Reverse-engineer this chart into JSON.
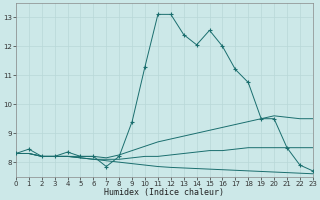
{
  "xlabel": "Humidex (Indice chaleur)",
  "background_color": "#cce8e8",
  "grid_color": "#b8d8d8",
  "line_color": "#1a6e6e",
  "xlim": [
    0,
    23
  ],
  "ylim": [
    7.5,
    13.5
  ],
  "yticks": [
    8,
    9,
    10,
    11,
    12,
    13
  ],
  "xticks": [
    0,
    1,
    2,
    3,
    4,
    5,
    6,
    7,
    8,
    9,
    10,
    11,
    12,
    13,
    14,
    15,
    16,
    17,
    18,
    19,
    20,
    21,
    22,
    23
  ],
  "series": [
    {
      "x": [
        0,
        1,
        2,
        3,
        4,
        5,
        6,
        7,
        8,
        9,
        10,
        11,
        12,
        13,
        14,
        15,
        16,
        17,
        18,
        19,
        20,
        21,
        22,
        23
      ],
      "y": [
        8.3,
        8.45,
        8.2,
        8.2,
        8.35,
        8.2,
        8.2,
        7.85,
        8.2,
        9.4,
        11.3,
        13.1,
        13.1,
        12.4,
        12.05,
        12.55,
        12.0,
        11.2,
        10.75,
        9.5,
        9.5,
        8.5,
        7.9,
        7.7
      ],
      "marker": true
    },
    {
      "x": [
        0,
        1,
        2,
        3,
        4,
        5,
        6,
        7,
        8,
        9,
        10,
        11,
        12,
        13,
        14,
        15,
        16,
        17,
        18,
        19,
        20,
        21,
        22,
        23
      ],
      "y": [
        8.3,
        8.3,
        8.2,
        8.2,
        8.2,
        8.2,
        8.2,
        8.15,
        8.25,
        8.4,
        8.55,
        8.7,
        8.8,
        8.9,
        9.0,
        9.1,
        9.2,
        9.3,
        9.4,
        9.5,
        9.6,
        9.55,
        9.5,
        9.5
      ],
      "marker": false
    },
    {
      "x": [
        0,
        1,
        2,
        3,
        4,
        5,
        6,
        7,
        8,
        9,
        10,
        11,
        12,
        13,
        14,
        15,
        16,
        17,
        18,
        19,
        20,
        21,
        22,
        23
      ],
      "y": [
        8.3,
        8.3,
        8.2,
        8.2,
        8.2,
        8.15,
        8.1,
        8.1,
        8.1,
        8.15,
        8.2,
        8.2,
        8.25,
        8.3,
        8.35,
        8.4,
        8.4,
        8.45,
        8.5,
        8.5,
        8.5,
        8.5,
        8.5,
        8.5
      ],
      "marker": false
    },
    {
      "x": [
        0,
        1,
        2,
        3,
        4,
        5,
        6,
        7,
        8,
        9,
        10,
        11,
        12,
        13,
        14,
        15,
        16,
        17,
        18,
        19,
        20,
        21,
        22,
        23
      ],
      "y": [
        8.3,
        8.3,
        8.2,
        8.2,
        8.2,
        8.15,
        8.1,
        8.05,
        8.0,
        7.95,
        7.9,
        7.85,
        7.82,
        7.8,
        7.78,
        7.76,
        7.74,
        7.72,
        7.7,
        7.68,
        7.66,
        7.64,
        7.62,
        7.6
      ],
      "marker": false
    }
  ]
}
